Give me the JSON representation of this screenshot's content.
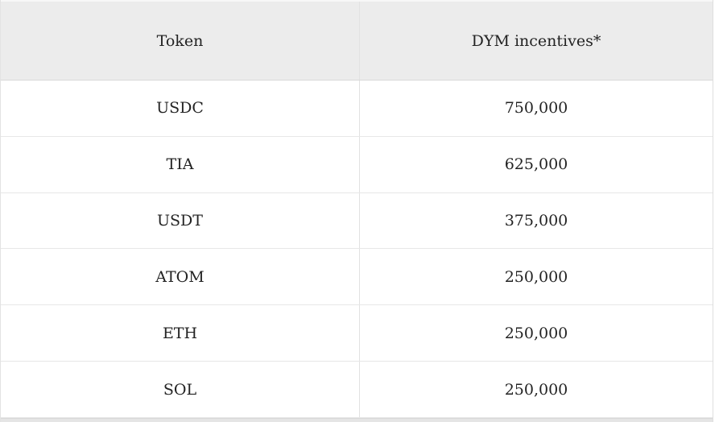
{
  "chart_data": {
    "type": "table",
    "columns": [
      "Token",
      "DYM incentives*"
    ],
    "rows": [
      [
        "USDC",
        "750,000"
      ],
      [
        "TIA",
        "625,000"
      ],
      [
        "USDT",
        "375,000"
      ],
      [
        "ATOM",
        "250,000"
      ],
      [
        "ETH",
        "250,000"
      ],
      [
        "SOL",
        "250,000"
      ]
    ],
    "values": {
      "USDC": 750000,
      "TIA": 625000,
      "USDT": 375000,
      "ATOM": 250000,
      "ETH": 250000,
      "SOL": 250000
    },
    "layout": {
      "header_position": "top",
      "cell_alignment": "center",
      "grid": "horizontal-lines-with-center-column-divider"
    }
  },
  "colors": {
    "header_background": "#ececec",
    "row_background": "#ffffff",
    "border": "#e0e0e0",
    "header_border_bottom": "#d9d9d9",
    "text": "#232323",
    "bottom_edge": "#e5e5e5"
  }
}
